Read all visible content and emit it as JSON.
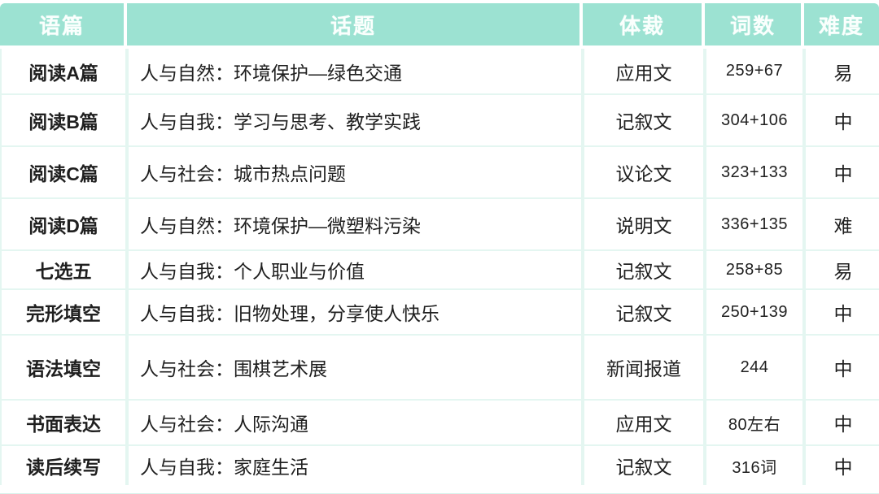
{
  "table": {
    "columns": [
      {
        "key": "passage",
        "label": "语篇"
      },
      {
        "key": "topic",
        "label": "话题"
      },
      {
        "key": "genre",
        "label": "体裁"
      },
      {
        "key": "words",
        "label": "词数"
      },
      {
        "key": "difficulty",
        "label": "难度"
      }
    ],
    "rows": [
      {
        "passage": "阅读A篇",
        "topic": "人与自然：环境保护—绿色交通",
        "genre": "应用文",
        "words": "259+67",
        "difficulty": "易"
      },
      {
        "passage": "阅读B篇",
        "topic": "人与自我：学习与思考、教学实践",
        "genre": "记叙文",
        "words": "304+106",
        "difficulty": "中"
      },
      {
        "passage": "阅读C篇",
        "topic": "人与社会：城市热点问题",
        "genre": "议论文",
        "words": "323+133",
        "difficulty": "中"
      },
      {
        "passage": "阅读D篇",
        "topic": "人与自然：环境保护—微塑料污染",
        "genre": "说明文",
        "words": "336+135",
        "difficulty": "难"
      },
      {
        "passage": "七选五",
        "topic": "人与自我：个人职业与价值",
        "genre": "记叙文",
        "words": "258+85",
        "difficulty": "易"
      },
      {
        "passage": "完形填空",
        "topic": "人与自我：旧物处理，分享使人快乐",
        "genre": "记叙文",
        "words": "250+139",
        "difficulty": "中"
      },
      {
        "passage": "语法填空",
        "topic": "人与社会：围棋艺术展",
        "genre": "新闻报道",
        "words": "244",
        "difficulty": "中"
      },
      {
        "passage": "书面表达",
        "topic": "人与社会：人际沟通",
        "genre": "应用文",
        "words": "80左右",
        "difficulty": "中"
      },
      {
        "passage": "读后续写",
        "topic": "人与自我：家庭生活",
        "genre": "记叙文",
        "words": "316词",
        "difficulty": "中"
      }
    ]
  },
  "colors": {
    "header_bg": "#9CE2D2",
    "header_text": "#FAFFFD",
    "divider": "#E4F6F1",
    "text": "#1F1F1F",
    "bottom_strip": "#D9F2EC",
    "cell_bg": "#FFFFFF"
  }
}
